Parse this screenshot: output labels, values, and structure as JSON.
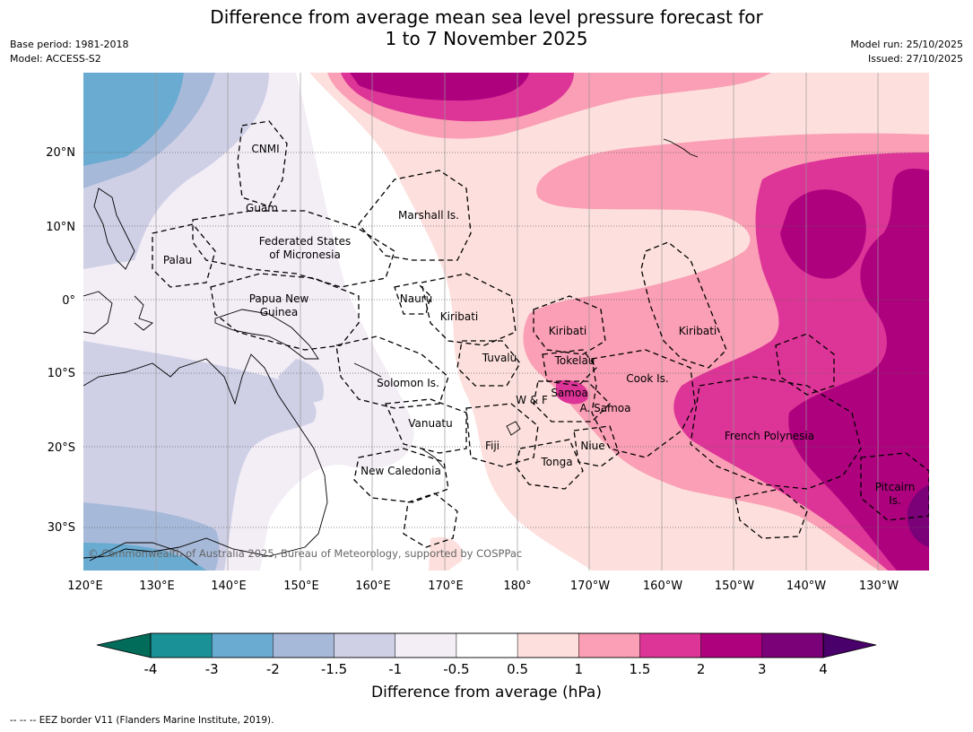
{
  "title_line1": "Difference from average mean sea level pressure forecast for",
  "title_line2": "1 to 7 November 2025",
  "meta_left": [
    "Base period: 1981-2018",
    "Model: ACCESS-S2"
  ],
  "meta_right": [
    "Model run: 25/10/2025",
    "Issued: 27/10/2025"
  ],
  "map": {
    "lat_ticks": [
      "20°N",
      "10°N",
      "0°",
      "10°S",
      "20°S",
      "30°S"
    ],
    "lon_ticks": [
      "120°E",
      "130°E",
      "140°E",
      "150°E",
      "160°E",
      "170°E",
      "180°",
      "170°W",
      "160°W",
      "150°W",
      "140°W",
      "130°W"
    ],
    "region_labels": [
      "CNMI",
      "Guam",
      "Marshall Is.",
      "Federated States",
      "of Micronesia",
      "Palau",
      "Papua New",
      "Guinea",
      "Nauru",
      "Kiribati",
      "Kiribati",
      "Kiribati",
      "Tuvalu",
      "Tokelau",
      "Cook Is.",
      "Solomon Is.",
      "Samoa",
      "W & F",
      "A. Samoa",
      "Vanuatu",
      "Fiji",
      "Niue",
      "French Polynesia",
      "Tonga",
      "New Caledonia",
      "Pitcairn",
      "Is."
    ],
    "copyright": "© Commonwealth of Australia 2025, Bureau of Meteorology, supported by COSPPac"
  },
  "colorbar": {
    "ticks": [
      "-4",
      "-3",
      "-2",
      "-1.5",
      "-1",
      "-0.5",
      "0.5",
      "1",
      "1.5",
      "2",
      "3",
      "4"
    ],
    "colors": [
      "#1a9196",
      "#6aabd2",
      "#a7b9d9",
      "#cfd0e6",
      "#f3edf6",
      "#ffffff",
      "#fde0dd",
      "#fa9fb5",
      "#dd3497",
      "#ae017e",
      "#7a0177"
    ],
    "under_color": "#016c59",
    "over_color": "#49006a",
    "label": "Difference from average (hPa)"
  },
  "footer": "--  --  -- EEZ border V11 (Flanders Marine Institute, 2019)."
}
